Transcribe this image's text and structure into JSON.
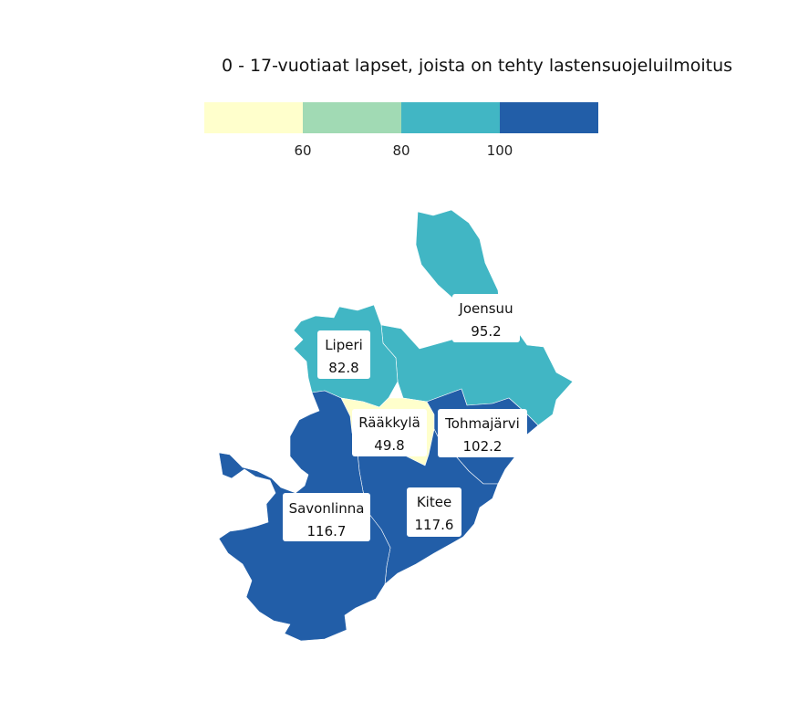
{
  "title": "0 - 17-vuotiaat lapset, joista on tehty lastensuojeluilmoitus",
  "legend": {
    "colors": [
      "#ffffcc",
      "#a1dab4",
      "#41b6c4",
      "#225ea8"
    ],
    "breaks": [
      "60",
      "80",
      "100"
    ]
  },
  "municipalities": [
    {
      "id": "joensuu",
      "name": "Joensuu",
      "value": "95.2",
      "value_num": 95.2
    },
    {
      "id": "liperi",
      "name": "Liperi",
      "value": "82.8",
      "value_num": 82.8
    },
    {
      "id": "raakkyla",
      "name": "Rääkkylä",
      "value": "49.8",
      "value_num": 49.8
    },
    {
      "id": "tohmajarvi",
      "name": "Tohmajärvi",
      "value": "102.2",
      "value_num": 102.2
    },
    {
      "id": "savonlinna",
      "name": "Savonlinna",
      "value": "116.7",
      "value_num": 116.7
    },
    {
      "id": "kitee",
      "name": "Kitee",
      "value": "117.6",
      "value_num": 117.6
    }
  ]
}
